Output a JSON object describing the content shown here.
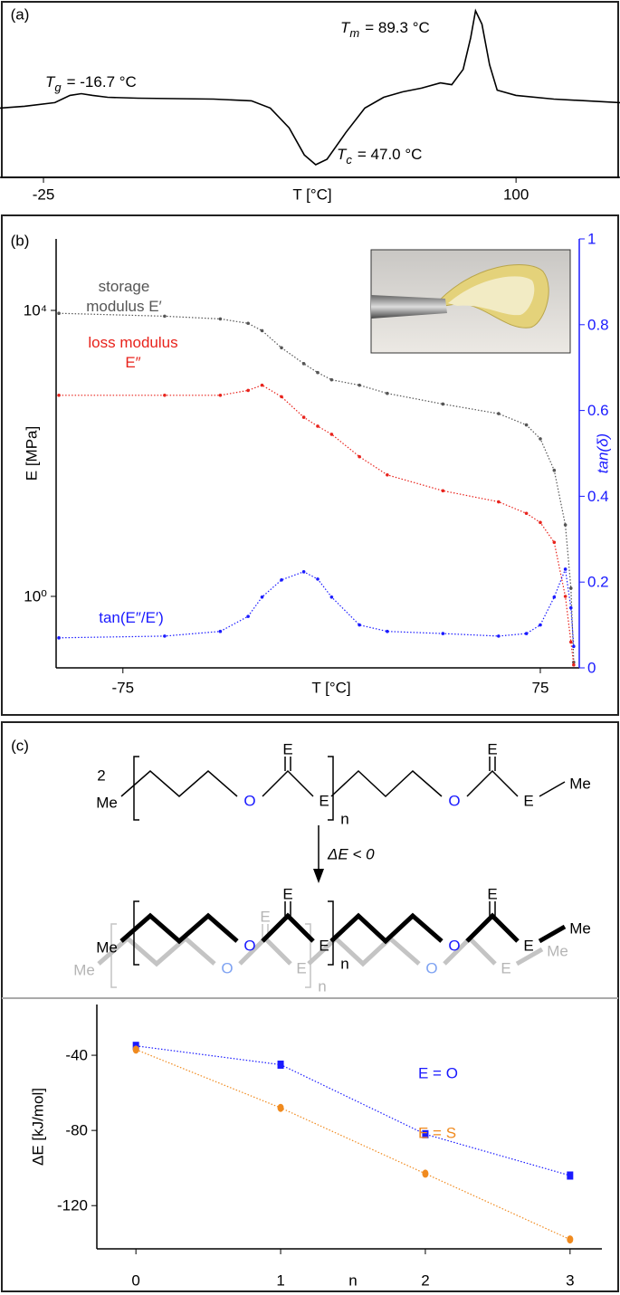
{
  "chart_data": [
    {
      "panel": "(a)",
      "type": "line",
      "xlabel": "T [°C]",
      "x": [
        -36.5,
        -30,
        -22,
        -18,
        -15,
        -12,
        -8,
        0,
        20,
        30,
        35,
        40,
        44,
        47,
        50,
        55,
        60,
        65,
        70,
        75,
        80,
        83,
        86,
        88,
        89.3,
        91,
        93,
        95,
        100,
        110,
        127.5
      ],
      "series": [
        {
          "color": "#000000",
          "values": [
            39.5,
            40.5,
            42.6,
            46.7,
            47.7,
            46.7,
            45.6,
            45.1,
            44.6,
            43.6,
            39.5,
            28.2,
            12.8,
            7.2,
            10.3,
            25.6,
            39.5,
            45.6,
            48.7,
            50.8,
            53.8,
            52.8,
            61.5,
            79.5,
            94.9,
            87.2,
            64.1,
            49.7,
            46.7,
            44.6,
            42.6
          ]
        }
      ],
      "xlim": [
        -36.5,
        127.5
      ],
      "ylim": [
        0,
        100
      ],
      "xticks": [
        -25,
        100
      ],
      "annotations": [
        {
          "symbol": "T",
          "sub": "g",
          "text": "= -16.7 °C"
        },
        {
          "symbol": "T",
          "sub": "m",
          "text": "= 89.3 °C"
        },
        {
          "symbol": "T",
          "sub": "c",
          "text": "= 47.0 °C"
        }
      ]
    },
    {
      "panel": "(b)",
      "type": "line",
      "xlabel": "T [°C]",
      "ylabel": "E [MPa]",
      "y2label": "tan(δ)",
      "ylog": true,
      "line_style": "dotted",
      "y2color": "#1a1aff",
      "x": [
        -98,
        -60,
        -40,
        -30,
        -25,
        -18,
        -10,
        -5,
        0,
        10,
        20,
        40,
        60,
        70,
        75,
        80,
        84,
        86,
        87
      ],
      "series": [
        {
          "name": "storage modulus E′",
          "color": "#555555",
          "marker": "dot",
          "values": [
            9100,
            8300,
            7600,
            6600,
            5200,
            3000,
            1800,
            1350,
            1070,
            900,
            690,
            490,
            360,
            250,
            160,
            58,
            10,
            1.3,
            0.12
          ]
        },
        {
          "name": "loss modulus E″",
          "color": "#e8231c",
          "marker": "dot",
          "values": [
            650,
            650,
            650,
            760,
            900,
            620,
            320,
            240,
            185,
            90,
            50,
            30,
            21,
            14.5,
            10.8,
            5.7,
            1,
            0.23,
            0.11
          ]
        },
        {
          "name": "tan(E″/E′)",
          "color": "#1a1aff",
          "marker": "dot",
          "axis": "y2",
          "values": [
            0.07,
            0.074,
            0.085,
            0.12,
            0.165,
            0.205,
            0.224,
            0.207,
            0.165,
            0.1,
            0.085,
            0.08,
            0.074,
            0.08,
            0.1,
            0.165,
            0.23,
            0.14,
            0.05
          ]
        }
      ],
      "xlim": [
        -99,
        89
      ],
      "ylim": [
        0.1,
        100000
      ],
      "y2lim": [
        0,
        1
      ],
      "xticks": [
        -75,
        75
      ],
      "yticks": [
        {
          "value": 1,
          "label": "10⁰"
        },
        {
          "value": 10000,
          "label": "10⁴"
        }
      ],
      "y2ticks": [
        0,
        0.2,
        0.4,
        0.6,
        0.8,
        1
      ]
    },
    {
      "panel": "(c)",
      "type": "line",
      "xlabel": "n",
      "ylabel": "ΔE [kJ/mol]",
      "line_style": "dotted",
      "x": [
        0,
        1,
        2,
        3
      ],
      "series": [
        {
          "name": "E = O",
          "color": "#1a1aff",
          "marker": "square",
          "values": [
            -35,
            -45,
            -82,
            -104
          ]
        },
        {
          "name": "E = S",
          "color": "#f08a1e",
          "marker": "circle",
          "values": [
            -37,
            -68,
            -103,
            -138
          ]
        }
      ],
      "xlim": [
        -0.27,
        3.22
      ],
      "ylim": [
        -143,
        -13
      ],
      "xticks": [
        0,
        1,
        2,
        3
      ],
      "yticks": [
        -40,
        -80,
        -120
      ]
    }
  ],
  "scheme": {
    "coefficient": "2",
    "reactant": [
      "Me",
      "O",
      "E",
      "E",
      "n",
      "O",
      "E",
      "E",
      "Me"
    ],
    "reaction": "ΔE < 0",
    "front": [
      "Me",
      "O",
      "E",
      "E",
      "n",
      "O",
      "E",
      "E",
      "Me"
    ],
    "back": [
      "Me",
      "O",
      "E",
      "E",
      "n",
      "O",
      "E",
      "Me"
    ]
  }
}
